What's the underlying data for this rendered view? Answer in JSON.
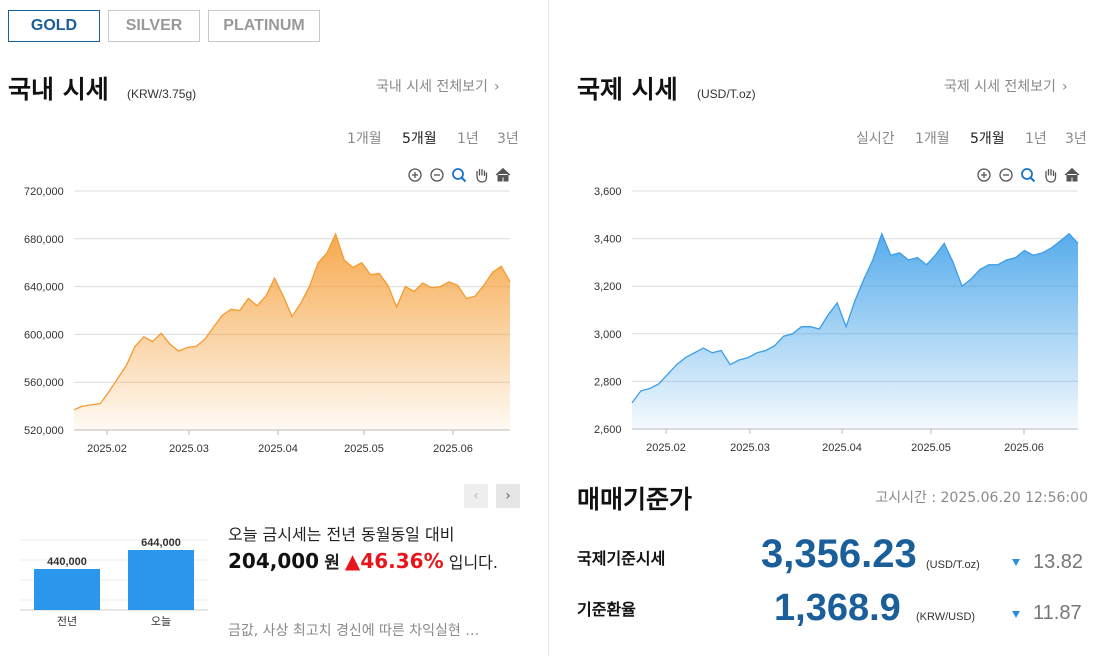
{
  "metal_tabs": [
    {
      "label": "GOLD",
      "active": true
    },
    {
      "label": "SILVER",
      "active": false
    },
    {
      "label": "PLATINUM",
      "active": false
    }
  ],
  "domestic": {
    "title": "국내 시세",
    "unit": "(KRW/3.75g)",
    "view_all": "국내 시세 전체보기",
    "periods": [
      "1개월",
      "5개월",
      "1년",
      "3년"
    ],
    "active_period": "5개월"
  },
  "international": {
    "title": "국제 시세",
    "unit": "(USD/T.oz)",
    "view_all": "국제 시세 전체보기",
    "periods": [
      "실시간",
      "1개월",
      "5개월",
      "1년",
      "3년"
    ],
    "active_period": "5개월"
  },
  "tool_icons": [
    "zoom-in-icon",
    "zoom-out-icon",
    "zoom-select-icon",
    "pan-hand-icon",
    "home-icon"
  ],
  "compare": {
    "bars": [
      {
        "label": "전년",
        "value": 440000,
        "display": "440,000"
      },
      {
        "label": "오늘",
        "value": 644000,
        "display": "644,000"
      }
    ],
    "text_prefix": "오늘 금시세는 전년 동월동일 대비",
    "diff": "204,000",
    "won": "원",
    "arrow": "▲",
    "pct": "46.36%",
    "text_suffix": "입니다.",
    "news": "금값, 사상 최고치 경신에 따른 차익실현 …"
  },
  "standard": {
    "title": "매매기준가",
    "notice_time": "고시시간 : 2025.06.20 12:56:00",
    "rows": [
      {
        "label": "국제기준시세",
        "value": "3,356.23",
        "unit": "(USD/T.oz)",
        "delta": "13.82"
      },
      {
        "label": "기준환율",
        "value": "1,368.9",
        "unit": "(KRW/USD)",
        "delta": "11.87"
      }
    ]
  },
  "chart_data": [
    {
      "type": "area",
      "title": "",
      "xlabel": "",
      "ylabel": "",
      "x_ticks": [
        "2025.02",
        "2025.03",
        "2025.04",
        "2025.05",
        "2025.06"
      ],
      "y_ticks": [
        "720,000",
        "680,000",
        "640,000",
        "600,000",
        "560,000",
        "520,000"
      ],
      "ylim": [
        520000,
        720000
      ],
      "x_range": [
        "2025.01.21",
        "2025.06.20"
      ],
      "color": "#f59a2e",
      "grid": true,
      "x": [
        "01.21",
        "01.24",
        "01.27",
        "01.30",
        "02.03",
        "02.06",
        "02.09",
        "02.12",
        "02.15",
        "02.18",
        "02.21",
        "02.24",
        "02.27",
        "03.02",
        "03.05",
        "03.08",
        "03.11",
        "03.14",
        "03.17",
        "03.20",
        "03.23",
        "03.26",
        "03.29",
        "04.01",
        "04.04",
        "04.07",
        "04.10",
        "04.13",
        "04.16",
        "04.19",
        "04.22",
        "04.25",
        "04.28",
        "05.01",
        "05.04",
        "05.07",
        "05.10",
        "05.13",
        "05.16",
        "05.19",
        "05.22",
        "05.25",
        "05.28",
        "05.31",
        "06.03",
        "06.06",
        "06.09",
        "06.12",
        "06.15",
        "06.18",
        "06.20"
      ],
      "values": [
        537000,
        540000,
        541000,
        542000,
        552000,
        563000,
        574000,
        590000,
        598000,
        594000,
        601000,
        592000,
        586000,
        589000,
        590000,
        596000,
        606000,
        616000,
        621000,
        620000,
        630000,
        624000,
        632000,
        647000,
        632000,
        615000,
        626000,
        640000,
        660000,
        668000,
        684000,
        662000,
        656000,
        660000,
        650000,
        651000,
        641000,
        623000,
        640000,
        636000,
        643000,
        639000,
        640000,
        644000,
        641000,
        630000,
        632000,
        641000,
        652000,
        657000,
        644000
      ]
    },
    {
      "type": "area",
      "title": "",
      "xlabel": "",
      "ylabel": "",
      "x_ticks": [
        "2025.02",
        "2025.03",
        "2025.04",
        "2025.05",
        "2025.06"
      ],
      "y_ticks": [
        "3,600",
        "3,400",
        "3,200",
        "3,000",
        "2,800",
        "2,600"
      ],
      "ylim": [
        2600,
        3600
      ],
      "x_range": [
        "2025.01.21",
        "2025.06.20"
      ],
      "color": "#3a9ee8",
      "grid": true,
      "x": [
        "01.21",
        "01.24",
        "01.27",
        "01.30",
        "02.03",
        "02.06",
        "02.09",
        "02.12",
        "02.15",
        "02.18",
        "02.21",
        "02.24",
        "02.27",
        "03.02",
        "03.05",
        "03.08",
        "03.11",
        "03.14",
        "03.17",
        "03.20",
        "03.23",
        "03.26",
        "03.29",
        "04.01",
        "04.04",
        "04.07",
        "04.10",
        "04.13",
        "04.16",
        "04.19",
        "04.22",
        "04.25",
        "04.28",
        "05.01",
        "05.04",
        "05.07",
        "05.10",
        "05.13",
        "05.16",
        "05.19",
        "05.22",
        "05.25",
        "05.28",
        "05.31",
        "06.03",
        "06.06",
        "06.09",
        "06.12",
        "06.15",
        "06.18",
        "06.20"
      ],
      "values": [
        2710,
        2760,
        2770,
        2790,
        2830,
        2870,
        2900,
        2920,
        2940,
        2920,
        2930,
        2870,
        2890,
        2900,
        2920,
        2930,
        2950,
        2990,
        3000,
        3030,
        3030,
        3020,
        3080,
        3130,
        3030,
        3140,
        3230,
        3310,
        3420,
        3330,
        3340,
        3310,
        3320,
        3290,
        3330,
        3380,
        3300,
        3200,
        3230,
        3270,
        3290,
        3290,
        3310,
        3320,
        3350,
        3330,
        3340,
        3360,
        3390,
        3420,
        3380
      ]
    }
  ]
}
